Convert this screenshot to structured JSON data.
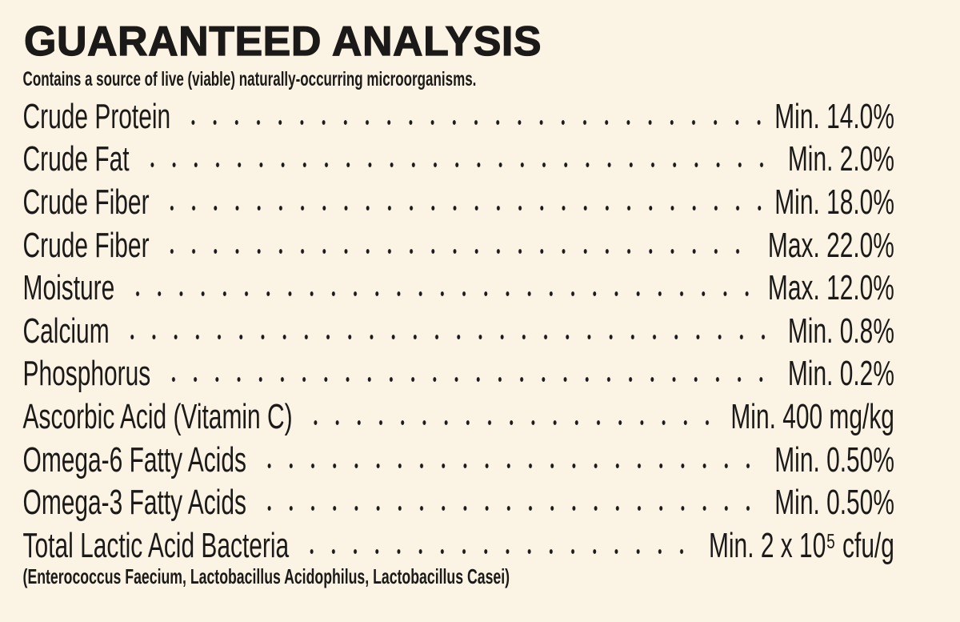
{
  "title": "GUARANTEED ANALYSIS",
  "subtitle": "Contains a source of live (viable) naturally-occurring microorganisms.",
  "rows": [
    {
      "nutrient": "Crude Protein",
      "value": "Min. 14.0%"
    },
    {
      "nutrient": "Crude Fat",
      "value": "Min. 2.0%"
    },
    {
      "nutrient": "Crude Fiber",
      "value": "Min. 18.0%"
    },
    {
      "nutrient": "Crude Fiber",
      "value": "Max. 22.0%"
    },
    {
      "nutrient": "Moisture",
      "value": "Max. 12.0%"
    },
    {
      "nutrient": "Calcium",
      "value": "Min. 0.8%"
    },
    {
      "nutrient": "Phosphorus",
      "value": "Min. 0.2%"
    },
    {
      "nutrient": "Ascorbic Acid (Vitamin C)",
      "value": "Min. 400 mg/kg"
    },
    {
      "nutrient": "Omega-6 Fatty Acids",
      "value": "Min. 0.50%"
    },
    {
      "nutrient": "Omega-3 Fatty Acids",
      "value": "Min. 0.50%"
    },
    {
      "nutrient": "Total Lactic Acid Bacteria",
      "value": "Min. 2 x 10⁵ cfu/g"
    }
  ],
  "footnote": "(Enterococcus Faecium, Lactobacillus Acidophilus, Lactobacillus Casei)"
}
